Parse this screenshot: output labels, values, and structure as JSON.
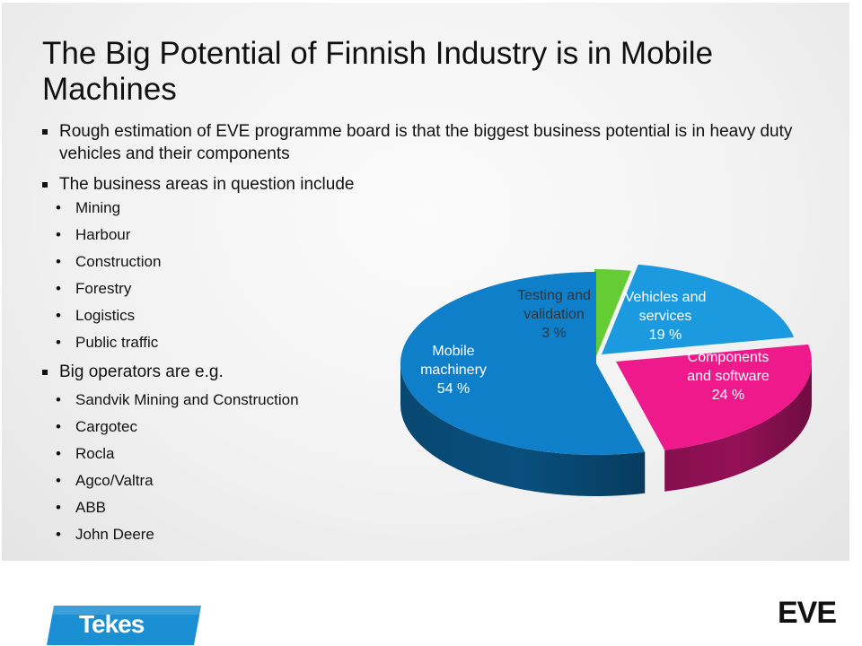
{
  "slide": {
    "title": "The Big Potential of Finnish Industry is in Mobile Machines",
    "bullets": [
      "Rough estimation of EVE programme board is that the biggest business potential is in heavy duty vehicles and their components",
      "The business areas in question include",
      "Big operators are e.g."
    ],
    "business_areas": [
      "Mining",
      "Harbour",
      "Construction",
      "Forestry",
      "Logistics",
      "Public traffic"
    ],
    "operators": [
      "Sandvik Mining and Construction",
      "Cargotec",
      "Rocla",
      "Agco/Valtra",
      "ABB",
      "John Deere"
    ],
    "sub_bullet_symbol": "•"
  },
  "chart_data": {
    "type": "pie",
    "style": "3d exploded",
    "title": "",
    "slices": [
      {
        "label_lines": [
          "Testing and",
          "validation",
          "3 %"
        ],
        "value": 3,
        "color": "#66cc33"
      },
      {
        "label_lines": [
          "Vehicles and",
          "services",
          "19 %"
        ],
        "value": 19,
        "color": "#1b9ae0"
      },
      {
        "label_lines": [
          "Components",
          "and software",
          "24 %"
        ],
        "value": 24,
        "color": "#ee1a8c"
      },
      {
        "label_lines": [
          "Mobile",
          "machinery",
          "54 %"
        ],
        "value": 54,
        "color": "#0f7fc9"
      }
    ]
  },
  "footer": {
    "logo_left": "Tekes",
    "logo_right": "EVE",
    "logo_left_color": "#1a8fd4"
  }
}
